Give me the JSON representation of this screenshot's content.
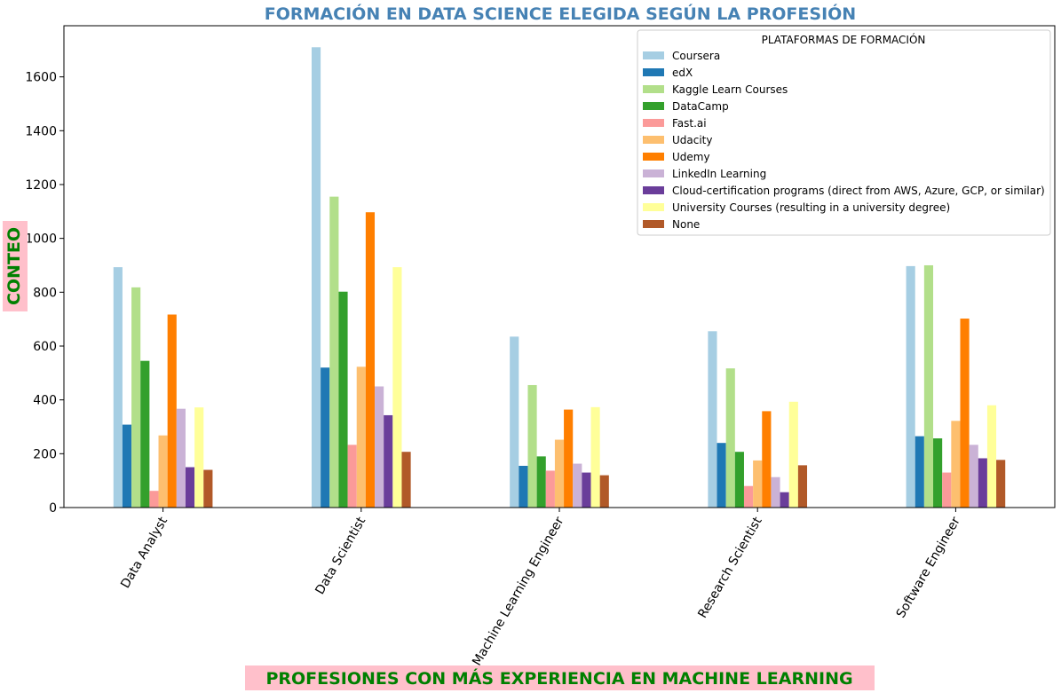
{
  "chart_data": {
    "type": "bar",
    "title": "FORMACIÓN EN DATA SCIENCE ELEGIDA SEGÚN LA PROFESIÓN",
    "xlabel": "PROFESIONES CON MÁS EXPERIENCIA EN MACHINE LEARNING",
    "ylabel": "CONTEO",
    "ylim": [
      0,
      1790
    ],
    "yticks": [
      0,
      200,
      400,
      600,
      800,
      1000,
      1200,
      1400,
      1600
    ],
    "grid": false,
    "legend_title": "PLATAFORMAS DE FORMACIÓN",
    "legend_position": "top-right",
    "categories": [
      "Data Analyst",
      "Data Scientist",
      "Machine Learning Engineer",
      "Research Scientist",
      "Software Engineer"
    ],
    "series": [
      {
        "name": "Coursera",
        "color": "#a6cee3",
        "values": [
          893,
          1710,
          635,
          655,
          897
        ]
      },
      {
        "name": "edX",
        "color": "#1f78b4",
        "values": [
          308,
          520,
          155,
          240,
          265
        ]
      },
      {
        "name": "Kaggle Learn Courses",
        "color": "#b2df8a",
        "values": [
          818,
          1155,
          455,
          517,
          900
        ]
      },
      {
        "name": "DataCamp",
        "color": "#33a02c",
        "values": [
          545,
          802,
          190,
          207,
          257
        ]
      },
      {
        "name": "Fast.ai",
        "color": "#fb9a99",
        "values": [
          62,
          233,
          137,
          80,
          130
        ]
      },
      {
        "name": "Udacity",
        "color": "#fdbf6f",
        "values": [
          268,
          523,
          252,
          175,
          322
        ]
      },
      {
        "name": "Udemy",
        "color": "#ff7f00",
        "values": [
          717,
          1097,
          364,
          358,
          702
        ]
      },
      {
        "name": "LinkedIn Learning",
        "color": "#cab2d6",
        "values": [
          367,
          450,
          163,
          113,
          233
        ]
      },
      {
        "name": "Cloud-certification programs (direct from AWS, Azure, GCP, or similar)",
        "color": "#6a3d9a",
        "values": [
          150,
          343,
          130,
          57,
          183
        ]
      },
      {
        "name": "University Courses (resulting in a university degree)",
        "color": "#ffff99",
        "values": [
          372,
          893,
          373,
          393,
          380
        ]
      },
      {
        "name": "None",
        "color": "#b15928",
        "values": [
          140,
          207,
          120,
          157,
          177
        ]
      }
    ]
  }
}
